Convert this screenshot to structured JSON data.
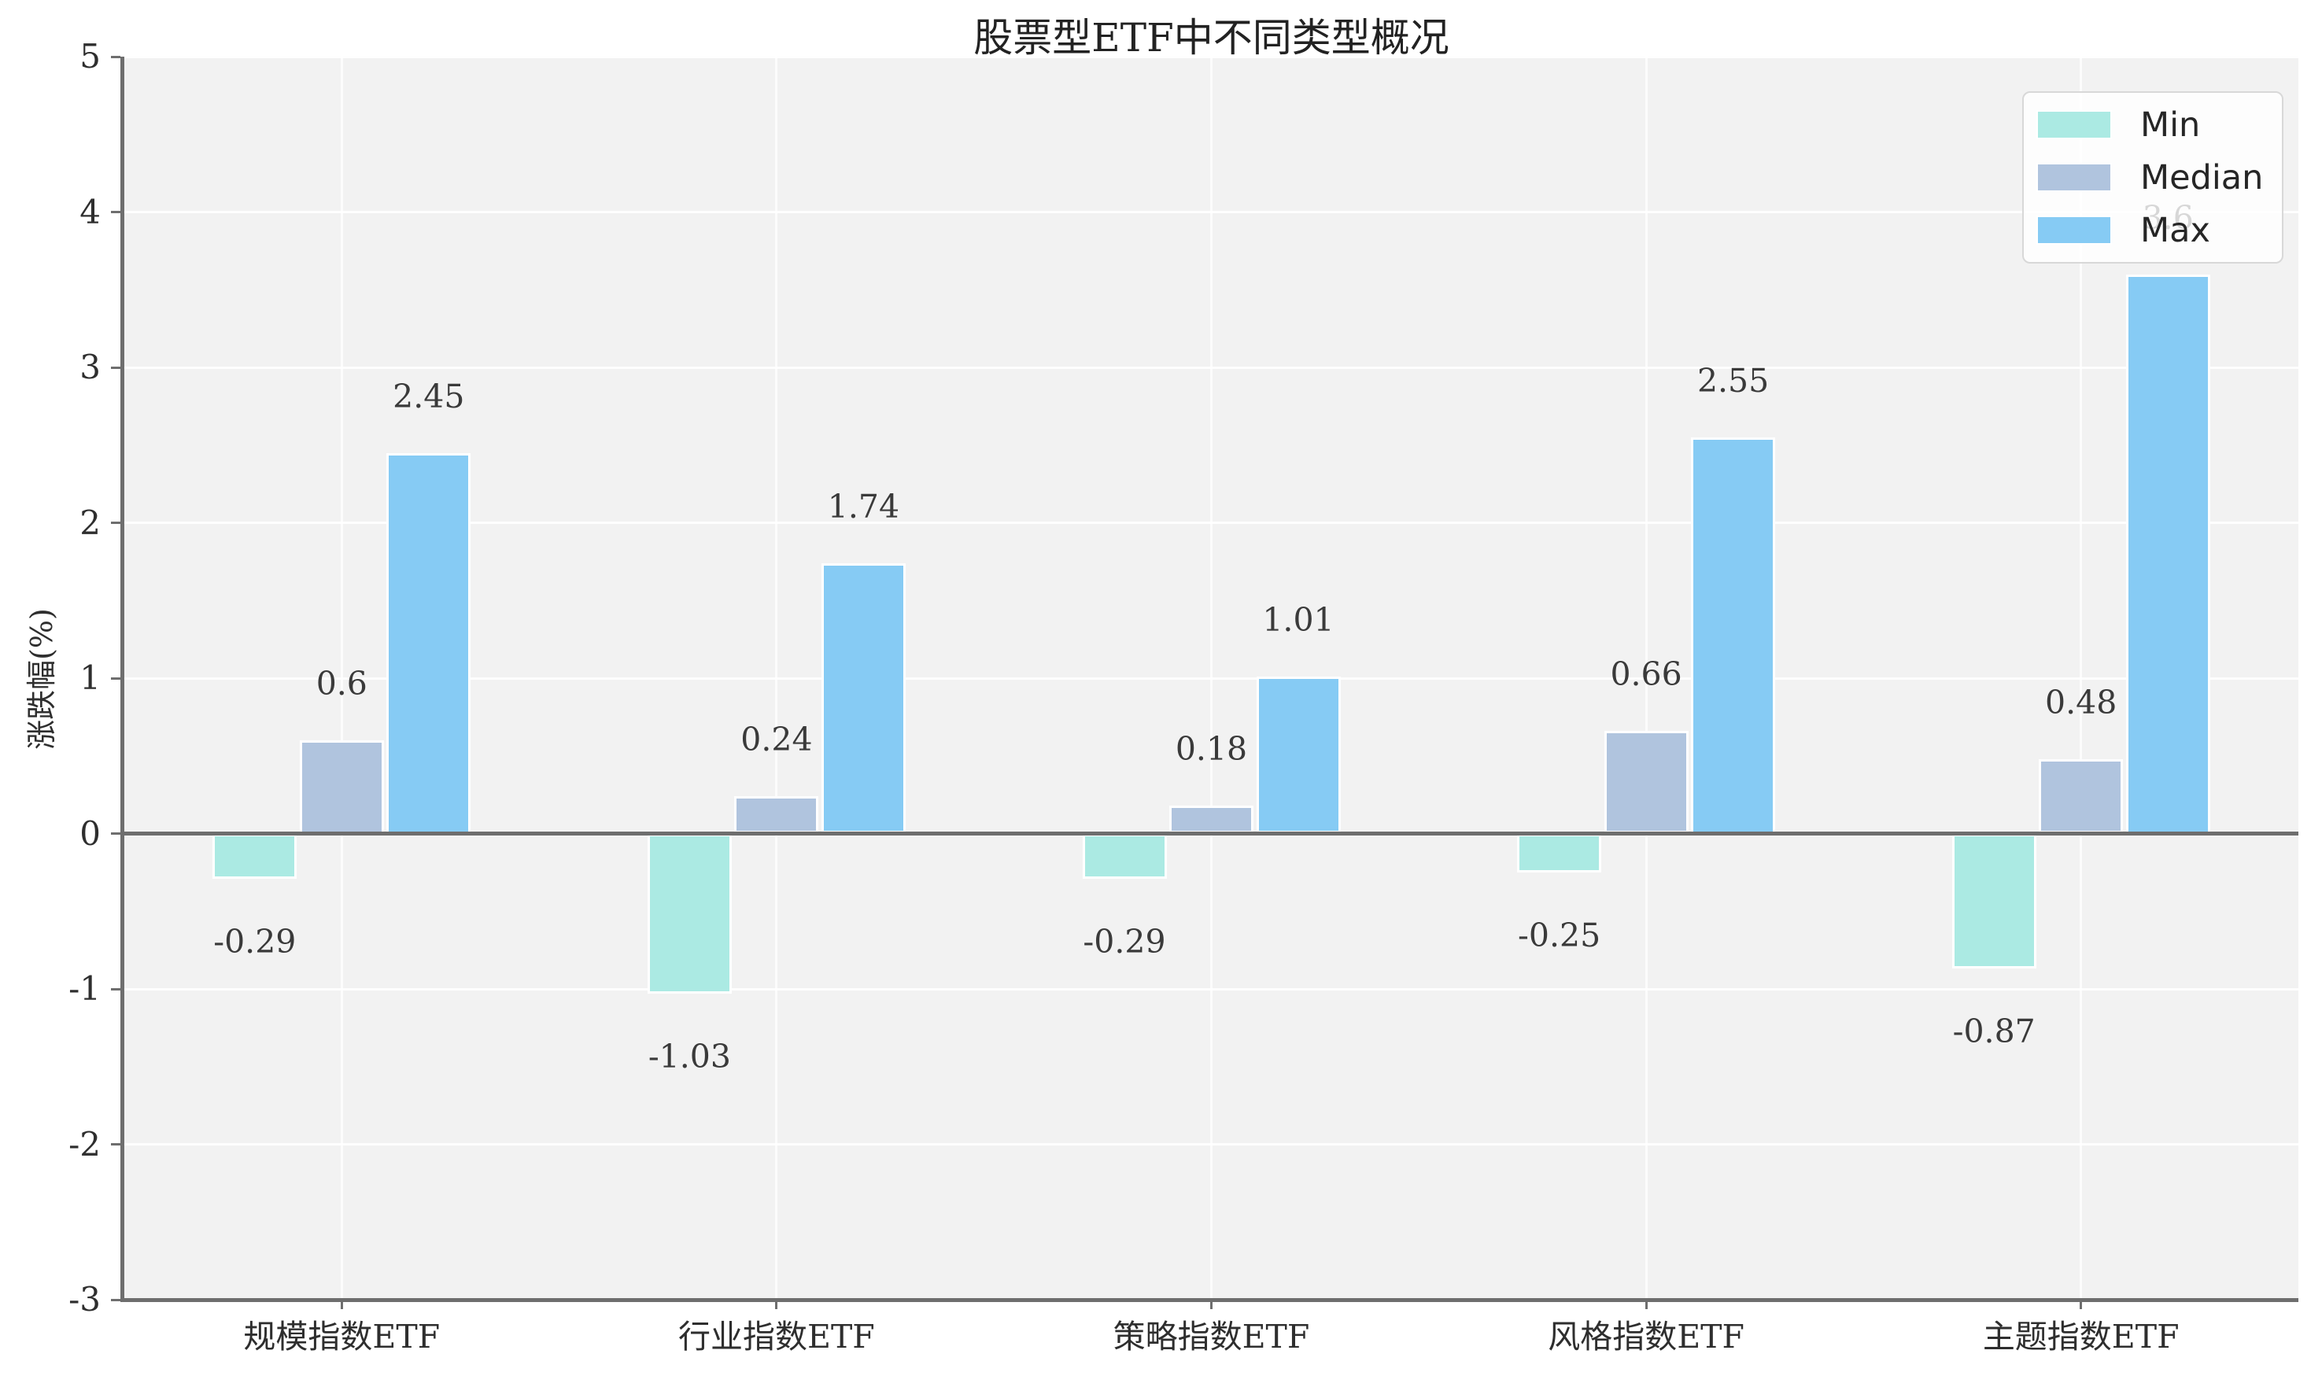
{
  "chart_data": {
    "type": "bar",
    "title": "股票型ETF中不同类型概况",
    "ylabel": "涨跌幅(%)",
    "categories": [
      "规模指数ETF",
      "行业指数ETF",
      "策略指数ETF",
      "风格指数ETF",
      "主题指数ETF"
    ],
    "series": [
      {
        "name": "Min",
        "color": "#ABEAE3",
        "values": [
          -0.29,
          -1.03,
          -0.29,
          -0.25,
          -0.87
        ],
        "labels": [
          "-0.29",
          "-1.03",
          "-0.29",
          "-0.25",
          "-0.87"
        ]
      },
      {
        "name": "Median",
        "color": "#B0C4DE",
        "values": [
          0.6,
          0.24,
          0.18,
          0.66,
          0.48
        ],
        "labels": [
          "0.6",
          "0.24",
          "0.18",
          "0.66",
          "0.48"
        ]
      },
      {
        "name": "Max",
        "color": "#86CBF4",
        "values": [
          2.45,
          1.74,
          1.01,
          2.55,
          3.6
        ],
        "labels": [
          "2.45",
          "1.74",
          "1.01",
          "2.55",
          "3.6"
        ]
      }
    ],
    "ylim": [
      -3,
      5
    ],
    "yticks": [
      5,
      4,
      3,
      2,
      1,
      0,
      -1,
      -2,
      -3
    ],
    "grid": true,
    "legend_position": "upper right"
  },
  "style": {
    "plot_bg": "#F2F2F2",
    "grid_color": "#FFFFFF",
    "spine_color": "#6E6E6E",
    "zero_line_color": "#6E6E6E",
    "text_color": "#2E2E2E",
    "bar_label_color": "#3A3A3A",
    "bar_edge_color": "#FFFFFF",
    "legend_border": "#D8D8D8"
  }
}
